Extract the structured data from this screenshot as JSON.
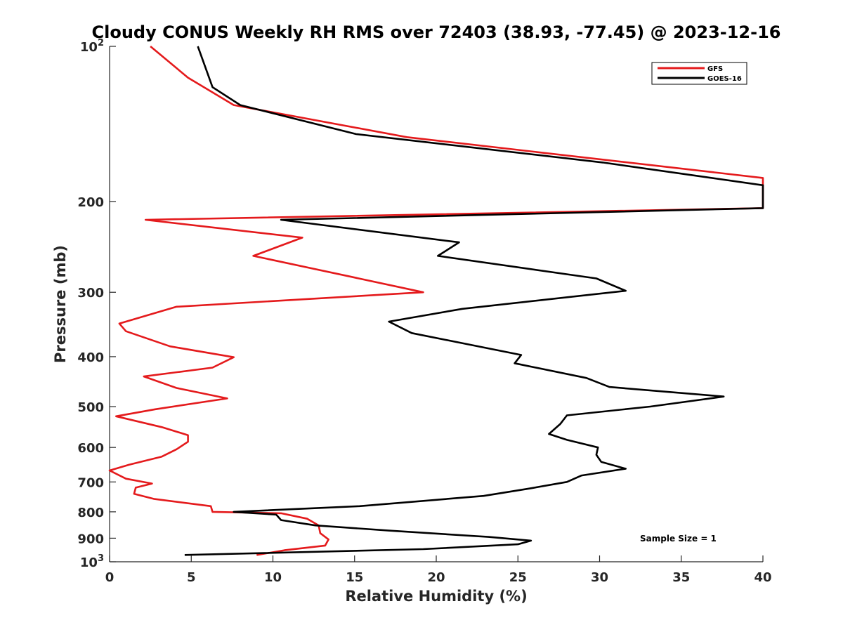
{
  "chart_data": {
    "type": "line",
    "title": "Cloudy CONUS Weekly RH RMS over 72403 (38.93, -77.45) @ 2023-12-16",
    "xlabel": "Relative Humidity (%)",
    "ylabel": "Pressure (mb)",
    "xlim": [
      0,
      40
    ],
    "ylim": [
      100,
      1000
    ],
    "y_scale": "log",
    "y_reversed": true,
    "x_ticks": [
      "0",
      "5",
      "10",
      "15",
      "20",
      "25",
      "30",
      "35",
      "40"
    ],
    "y_ticks": [
      {
        "value": 100,
        "label": "10",
        "sup": "2"
      },
      {
        "value": 200,
        "label": "200",
        "sup": ""
      },
      {
        "value": 300,
        "label": "300",
        "sup": ""
      },
      {
        "value": 400,
        "label": "400",
        "sup": ""
      },
      {
        "value": 500,
        "label": "500",
        "sup": ""
      },
      {
        "value": 600,
        "label": "600",
        "sup": ""
      },
      {
        "value": 700,
        "label": "700",
        "sup": ""
      },
      {
        "value": 800,
        "label": "800",
        "sup": ""
      },
      {
        "value": 900,
        "label": "900",
        "sup": ""
      },
      {
        "value": 1000,
        "label": "10",
        "sup": "3"
      }
    ],
    "grid": false,
    "legend_position": "top-right",
    "annotation": "Sample Size = 1",
    "series": [
      {
        "name": "GFS",
        "color": "#e41a1c",
        "points": [
          [
            2.5,
            100
          ],
          [
            4.8,
            115
          ],
          [
            7.6,
            130
          ],
          [
            18.2,
            150
          ],
          [
            40,
            180
          ],
          [
            40,
            206
          ],
          [
            2.2,
            217
          ],
          [
            11.8,
            235
          ],
          [
            8.8,
            255
          ],
          [
            14.8,
            280
          ],
          [
            19.2,
            300
          ],
          [
            4.1,
            320
          ],
          [
            0.6,
            345
          ],
          [
            1.0,
            357
          ],
          [
            3.7,
            382
          ],
          [
            7.6,
            401
          ],
          [
            6.3,
            420
          ],
          [
            2.1,
            437
          ],
          [
            4.1,
            460
          ],
          [
            7.2,
            482
          ],
          [
            2.8,
            506
          ],
          [
            0.4,
            522
          ],
          [
            3.2,
            548
          ],
          [
            4.8,
            568
          ],
          [
            4.8,
            585
          ],
          [
            4.1,
            605
          ],
          [
            3.2,
            625
          ],
          [
            1.2,
            648
          ],
          [
            0,
            665
          ],
          [
            1.0,
            690
          ],
          [
            2.6,
            705
          ],
          [
            1.6,
            718
          ],
          [
            1.5,
            738
          ],
          [
            2.7,
            755
          ],
          [
            6.2,
            780
          ],
          [
            6.3,
            800
          ],
          [
            10.5,
            805
          ],
          [
            12.1,
            825
          ],
          [
            12.8,
            850
          ],
          [
            12.9,
            880
          ],
          [
            13.4,
            905
          ],
          [
            13.2,
            930
          ],
          [
            10.7,
            950
          ],
          [
            9.0,
            970
          ]
        ]
      },
      {
        "name": "GOES-16",
        "color": "#000000",
        "points": [
          [
            5.4,
            100
          ],
          [
            6.3,
            120
          ],
          [
            8.0,
            130
          ],
          [
            15.1,
            148
          ],
          [
            30.2,
            168
          ],
          [
            40,
            186
          ],
          [
            40,
            206
          ],
          [
            10.5,
            217
          ],
          [
            21.4,
            240
          ],
          [
            20.1,
            255
          ],
          [
            29.8,
            282
          ],
          [
            31.6,
            298
          ],
          [
            21.6,
            323
          ],
          [
            17.1,
            342
          ],
          [
            18.5,
            360
          ],
          [
            25.2,
            397
          ],
          [
            24.8,
            412
          ],
          [
            29.2,
            440
          ],
          [
            30.6,
            458
          ],
          [
            37.6,
            478
          ],
          [
            33.1,
            500
          ],
          [
            28.0,
            520
          ],
          [
            27.6,
            540
          ],
          [
            26.9,
            565
          ],
          [
            28.0,
            580
          ],
          [
            29.9,
            600
          ],
          [
            29.8,
            620
          ],
          [
            30.1,
            640
          ],
          [
            31.6,
            660
          ],
          [
            28.9,
            680
          ],
          [
            28.0,
            700
          ],
          [
            25.8,
            720
          ],
          [
            22.9,
            745
          ],
          [
            15.3,
            780
          ],
          [
            7.6,
            800
          ],
          [
            10.2,
            810
          ],
          [
            10.5,
            830
          ],
          [
            12.6,
            850
          ],
          [
            17.1,
            870
          ],
          [
            23.2,
            895
          ],
          [
            25.8,
            910
          ],
          [
            25.0,
            925
          ],
          [
            19.2,
            945
          ],
          [
            4.6,
            970
          ]
        ]
      }
    ]
  }
}
